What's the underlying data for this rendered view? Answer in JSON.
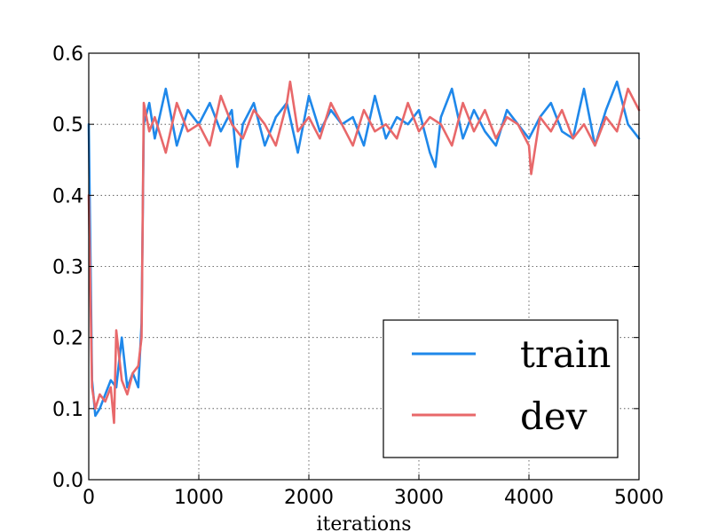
{
  "chart_data": {
    "type": "line",
    "title": "",
    "xlabel": "iterations",
    "ylabel": "",
    "xlim": [
      0,
      5000
    ],
    "ylim": [
      0.0,
      0.6
    ],
    "xticks": [
      "0",
      "1000",
      "2000",
      "3000",
      "4000",
      "5000"
    ],
    "yticks": [
      "0.0",
      "0.1",
      "0.2",
      "0.3",
      "0.4",
      "0.5",
      "0.6"
    ],
    "grid": true,
    "legend_position": "lower-right",
    "series": [
      {
        "name": "train",
        "color": "#1f88ea",
        "x": [
          0,
          30,
          60,
          100,
          150,
          200,
          250,
          300,
          350,
          400,
          450,
          480,
          500,
          550,
          600,
          700,
          800,
          900,
          1000,
          1100,
          1200,
          1300,
          1350,
          1400,
          1500,
          1600,
          1700,
          1800,
          1900,
          2000,
          2100,
          2200,
          2300,
          2400,
          2500,
          2600,
          2700,
          2800,
          2900,
          3000,
          3100,
          3150,
          3200,
          3300,
          3400,
          3500,
          3600,
          3700,
          3800,
          3900,
          4000,
          4100,
          4200,
          4300,
          4400,
          4500,
          4600,
          4700,
          4800,
          4900,
          5000
        ],
        "y": [
          0.5,
          0.14,
          0.09,
          0.1,
          0.12,
          0.14,
          0.13,
          0.2,
          0.13,
          0.15,
          0.13,
          0.22,
          0.5,
          0.53,
          0.48,
          0.55,
          0.47,
          0.52,
          0.5,
          0.53,
          0.49,
          0.52,
          0.44,
          0.5,
          0.53,
          0.47,
          0.51,
          0.53,
          0.46,
          0.54,
          0.49,
          0.52,
          0.5,
          0.51,
          0.47,
          0.54,
          0.48,
          0.51,
          0.5,
          0.52,
          0.46,
          0.44,
          0.51,
          0.55,
          0.48,
          0.52,
          0.49,
          0.47,
          0.52,
          0.5,
          0.48,
          0.51,
          0.53,
          0.49,
          0.48,
          0.55,
          0.47,
          0.52,
          0.56,
          0.5,
          0.48
        ]
      },
      {
        "name": "dev",
        "color": "#e8686a",
        "x": [
          0,
          30,
          60,
          100,
          150,
          200,
          230,
          250,
          300,
          350,
          400,
          450,
          480,
          500,
          550,
          600,
          700,
          800,
          900,
          1000,
          1100,
          1200,
          1300,
          1400,
          1500,
          1600,
          1700,
          1800,
          1830,
          1900,
          2000,
          2100,
          2200,
          2300,
          2400,
          2500,
          2600,
          2700,
          2800,
          2900,
          3000,
          3100,
          3200,
          3300,
          3400,
          3500,
          3600,
          3700,
          3800,
          3900,
          4000,
          4020,
          4100,
          4200,
          4300,
          4400,
          4500,
          4600,
          4700,
          4800,
          4900,
          5000
        ],
        "y": [
          0.4,
          0.13,
          0.1,
          0.12,
          0.11,
          0.13,
          0.08,
          0.21,
          0.14,
          0.12,
          0.15,
          0.16,
          0.2,
          0.53,
          0.49,
          0.51,
          0.46,
          0.53,
          0.49,
          0.5,
          0.47,
          0.54,
          0.5,
          0.48,
          0.52,
          0.5,
          0.47,
          0.53,
          0.56,
          0.49,
          0.51,
          0.48,
          0.53,
          0.5,
          0.47,
          0.52,
          0.49,
          0.5,
          0.48,
          0.53,
          0.49,
          0.51,
          0.5,
          0.47,
          0.53,
          0.49,
          0.52,
          0.48,
          0.51,
          0.5,
          0.47,
          0.43,
          0.51,
          0.49,
          0.52,
          0.48,
          0.5,
          0.47,
          0.51,
          0.49,
          0.55,
          0.52
        ]
      }
    ]
  }
}
